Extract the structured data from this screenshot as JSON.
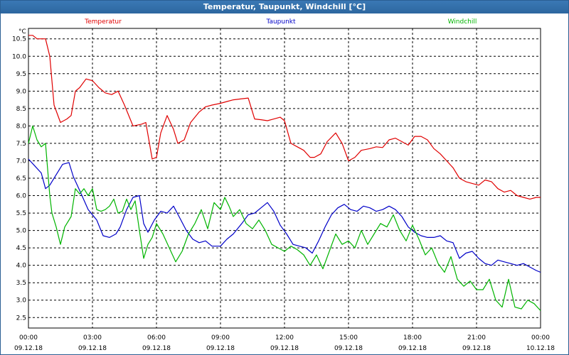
{
  "window": {
    "title": "Temperatur, Taupunkt, Windchill [°C]"
  },
  "chart_data": {
    "type": "line",
    "title": "Temperatur, Taupunkt, Windchill [°C]",
    "ylabel": "°C",
    "xlabel": "",
    "ylim": [
      2.2,
      10.8
    ],
    "xlim_hours": [
      0,
      24
    ],
    "grid": true,
    "legend_placement": "top",
    "y_ticks": [
      "10.5",
      "10.0",
      "9.5",
      "9.0",
      "8.5",
      "8.0",
      "7.5",
      "7.0",
      "6.5",
      "6.0",
      "5.5",
      "5.0",
      "4.5",
      "4.0",
      "3.5",
      "3.0",
      "2.5"
    ],
    "x_ticks": [
      {
        "time": "00:00",
        "date": "09.12.18"
      },
      {
        "time": "03:00",
        "date": "09.12.18"
      },
      {
        "time": "06:00",
        "date": "09.12.18"
      },
      {
        "time": "09:00",
        "date": "09.12.18"
      },
      {
        "time": "12:00",
        "date": "09.12.18"
      },
      {
        "time": "15:00",
        "date": "09.12.18"
      },
      {
        "time": "18:00",
        "date": "09.12.18"
      },
      {
        "time": "21:00",
        "date": "09.12.18"
      },
      {
        "time": "00:00",
        "date": "10.12.18"
      }
    ],
    "series": [
      {
        "name": "Temperatur",
        "color": "#e00000",
        "x": [
          0,
          0.2,
          0.4,
          0.6,
          0.8,
          1.0,
          1.2,
          1.5,
          1.8,
          2.0,
          2.2,
          2.4,
          2.7,
          3.0,
          3.3,
          3.6,
          3.9,
          4.2,
          4.5,
          4.9,
          5.3,
          5.5,
          5.8,
          6.0,
          6.2,
          6.5,
          6.8,
          7.0,
          7.3,
          7.6,
          8.0,
          8.3,
          8.6,
          9.0,
          9.3,
          9.6,
          10.0,
          10.3,
          10.6,
          10.9,
          11.2,
          11.5,
          11.8,
          12.0,
          12.3,
          12.6,
          12.9,
          13.2,
          13.4,
          13.7,
          14.0,
          14.4,
          14.7,
          15.0,
          15.3,
          15.6,
          16.0,
          16.3,
          16.6,
          16.9,
          17.2,
          17.5,
          17.8,
          18.1,
          18.4,
          18.7,
          19.0,
          19.3,
          19.6,
          19.9,
          20.2,
          20.5,
          20.8,
          21.1,
          21.4,
          21.7,
          22.0,
          22.3,
          22.6,
          22.9,
          23.2,
          23.5,
          23.8,
          24.0
        ],
        "y": [
          10.6,
          10.6,
          10.5,
          10.5,
          10.5,
          10.0,
          8.6,
          8.1,
          8.2,
          8.3,
          9.0,
          9.1,
          9.35,
          9.3,
          9.1,
          8.95,
          8.9,
          9.0,
          8.6,
          8.0,
          8.05,
          8.1,
          7.05,
          7.1,
          7.8,
          8.3,
          7.9,
          7.5,
          7.6,
          8.1,
          8.4,
          8.55,
          8.6,
          8.65,
          8.7,
          8.75,
          8.78,
          8.8,
          8.2,
          8.18,
          8.15,
          8.2,
          8.25,
          8.15,
          7.5,
          7.4,
          7.3,
          7.1,
          7.1,
          7.2,
          7.55,
          7.8,
          7.5,
          7.0,
          7.1,
          7.3,
          7.35,
          7.4,
          7.38,
          7.6,
          7.65,
          7.55,
          7.45,
          7.7,
          7.7,
          7.6,
          7.35,
          7.2,
          7.0,
          6.8,
          6.5,
          6.4,
          6.35,
          6.3,
          6.45,
          6.4,
          6.2,
          6.1,
          6.15,
          6.0,
          5.95,
          5.9,
          5.95,
          5.95
        ]
      },
      {
        "name": "Taupunkt",
        "color": "#0000c8",
        "x": [
          0,
          0.3,
          0.6,
          0.8,
          1.0,
          1.3,
          1.6,
          1.9,
          2.1,
          2.4,
          2.8,
          3.2,
          3.5,
          3.8,
          4.1,
          4.3,
          4.6,
          4.9,
          5.2,
          5.4,
          5.6,
          5.9,
          6.2,
          6.5,
          6.8,
          7.1,
          7.4,
          7.7,
          8.0,
          8.3,
          8.6,
          9.0,
          9.3,
          9.6,
          10.0,
          10.3,
          10.6,
          10.9,
          11.2,
          11.5,
          11.8,
          12.1,
          12.4,
          12.7,
          13.0,
          13.3,
          13.6,
          13.9,
          14.2,
          14.5,
          14.8,
          15.1,
          15.4,
          15.7,
          16.0,
          16.3,
          16.6,
          16.9,
          17.2,
          17.5,
          17.8,
          18.1,
          18.4,
          18.7,
          19.0,
          19.3,
          19.6,
          19.9,
          20.2,
          20.5,
          20.8,
          21.1,
          21.4,
          21.7,
          22.0,
          22.3,
          22.6,
          22.9,
          23.2,
          23.5,
          23.8,
          24.0
        ],
        "y": [
          7.05,
          6.85,
          6.65,
          6.2,
          6.3,
          6.6,
          6.9,
          6.95,
          6.55,
          6.15,
          5.6,
          5.3,
          4.85,
          4.8,
          4.9,
          5.1,
          5.6,
          5.95,
          6.0,
          5.2,
          4.95,
          5.3,
          5.55,
          5.5,
          5.7,
          5.35,
          5.0,
          4.75,
          4.65,
          4.7,
          4.55,
          4.55,
          4.75,
          4.9,
          5.2,
          5.45,
          5.5,
          5.65,
          5.8,
          5.55,
          5.15,
          4.9,
          4.6,
          4.55,
          4.5,
          4.35,
          4.7,
          5.1,
          5.45,
          5.65,
          5.75,
          5.6,
          5.55,
          5.7,
          5.65,
          5.55,
          5.6,
          5.7,
          5.6,
          5.4,
          5.1,
          4.95,
          4.85,
          4.8,
          4.8,
          4.85,
          4.7,
          4.65,
          4.2,
          4.35,
          4.4,
          4.2,
          4.05,
          4.0,
          4.15,
          4.1,
          4.05,
          4.0,
          4.05,
          3.95,
          3.85,
          3.8
        ]
      },
      {
        "name": "Windchill",
        "color": "#00b400",
        "x": [
          0,
          0.2,
          0.4,
          0.6,
          0.8,
          1.0,
          1.1,
          1.3,
          1.5,
          1.7,
          2.0,
          2.2,
          2.4,
          2.6,
          2.8,
          3.0,
          3.2,
          3.4,
          3.6,
          3.8,
          4.0,
          4.2,
          4.4,
          4.6,
          4.8,
          5.0,
          5.2,
          5.4,
          5.6,
          5.8,
          6.0,
          6.3,
          6.6,
          6.9,
          7.2,
          7.5,
          7.8,
          8.1,
          8.4,
          8.7,
          9.0,
          9.2,
          9.4,
          9.6,
          9.9,
          10.2,
          10.5,
          10.8,
          11.1,
          11.4,
          11.7,
          12.0,
          12.3,
          12.6,
          12.9,
          13.2,
          13.5,
          13.8,
          14.1,
          14.4,
          14.7,
          15.0,
          15.3,
          15.6,
          15.9,
          16.2,
          16.5,
          16.8,
          17.1,
          17.4,
          17.7,
          18.0,
          18.3,
          18.6,
          18.9,
          19.2,
          19.5,
          19.8,
          20.1,
          20.4,
          20.7,
          21.0,
          21.3,
          21.6,
          21.9,
          22.2,
          22.5,
          22.8,
          23.1,
          23.4,
          23.7,
          24.0
        ],
        "y": [
          7.5,
          8.0,
          7.6,
          7.4,
          7.5,
          6.0,
          5.5,
          5.1,
          4.6,
          5.1,
          5.4,
          6.2,
          6.05,
          6.2,
          6.0,
          6.2,
          5.6,
          5.55,
          5.6,
          5.7,
          5.9,
          5.5,
          5.55,
          5.9,
          5.6,
          5.85,
          5.0,
          4.2,
          4.6,
          4.8,
          5.2,
          4.9,
          4.5,
          4.1,
          4.4,
          4.9,
          5.2,
          5.6,
          5.05,
          5.8,
          5.6,
          5.95,
          5.7,
          5.4,
          5.6,
          5.2,
          5.05,
          5.3,
          5.0,
          4.6,
          4.5,
          4.4,
          4.55,
          4.45,
          4.3,
          4.0,
          4.3,
          3.9,
          4.4,
          4.9,
          4.6,
          4.7,
          4.5,
          5.0,
          4.6,
          4.9,
          5.2,
          5.1,
          5.45,
          5.0,
          4.7,
          5.15,
          4.75,
          4.3,
          4.5,
          4.05,
          3.8,
          4.25,
          3.6,
          3.4,
          3.55,
          3.3,
          3.3,
          3.6,
          3.0,
          2.8,
          3.6,
          2.8,
          2.75,
          3.0,
          2.9,
          2.7
        ]
      }
    ]
  }
}
